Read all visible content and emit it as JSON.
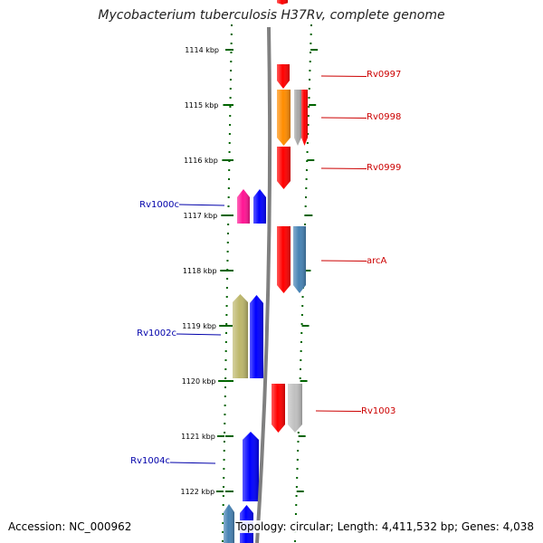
{
  "title": "Mycobacterium tuberculosis H37Rv, complete genome",
  "footer": {
    "accession": "Accession: NC_000962",
    "topology": "Topology: circular; Length: 4,411,532 bp; Genes: 4,038"
  },
  "colors": {
    "backbone": "#808080",
    "tick": "#006400",
    "label_forward": "#cc0000",
    "label_reverse": "#0000aa"
  },
  "scale_ticks": [
    "1114 kbp",
    "1115 kbp",
    "1116 kbp",
    "1117 kbp",
    "1118 kbp",
    "1119 kbp",
    "1120 kbp",
    "1121 kbp",
    "1122 kbp"
  ],
  "gene_labels": [
    {
      "text": "Rv0997",
      "strand": "forward"
    },
    {
      "text": "Rv0998",
      "strand": "forward"
    },
    {
      "text": "Rv0999",
      "strand": "forward"
    },
    {
      "text": "arcA",
      "strand": "forward"
    },
    {
      "text": "Rv1003",
      "strand": "forward"
    },
    {
      "text": "Rv1000c",
      "strand": "reverse"
    },
    {
      "text": "Rv1002c",
      "strand": "reverse"
    },
    {
      "text": "Rv1004c",
      "strand": "reverse"
    }
  ],
  "genes": [
    {
      "strand": "forward",
      "color": "#ff0000"
    },
    {
      "strand": "forward",
      "color": "#ff0000"
    },
    {
      "strand": "forward",
      "color": "#ff8c00"
    },
    {
      "strand": "forward",
      "color": "#a9a9a9"
    },
    {
      "strand": "forward",
      "color": "#ff0000"
    },
    {
      "strand": "forward",
      "color": "#ff0000"
    },
    {
      "strand": "forward",
      "color": "#4682b4"
    },
    {
      "strand": "forward",
      "color": "#ff0000"
    },
    {
      "strand": "forward",
      "color": "#c0c0c0"
    },
    {
      "strand": "reverse",
      "color": "#ff1493"
    },
    {
      "strand": "reverse",
      "color": "#0000ff"
    },
    {
      "strand": "reverse",
      "color": "#bdb76b"
    },
    {
      "strand": "reverse",
      "color": "#0000ff"
    },
    {
      "strand": "reverse",
      "color": "#0000ff"
    },
    {
      "strand": "reverse",
      "color": "#4682b4"
    },
    {
      "strand": "reverse",
      "color": "#0000ff"
    },
    {
      "strand": "forward",
      "color": "#ff0000"
    }
  ]
}
